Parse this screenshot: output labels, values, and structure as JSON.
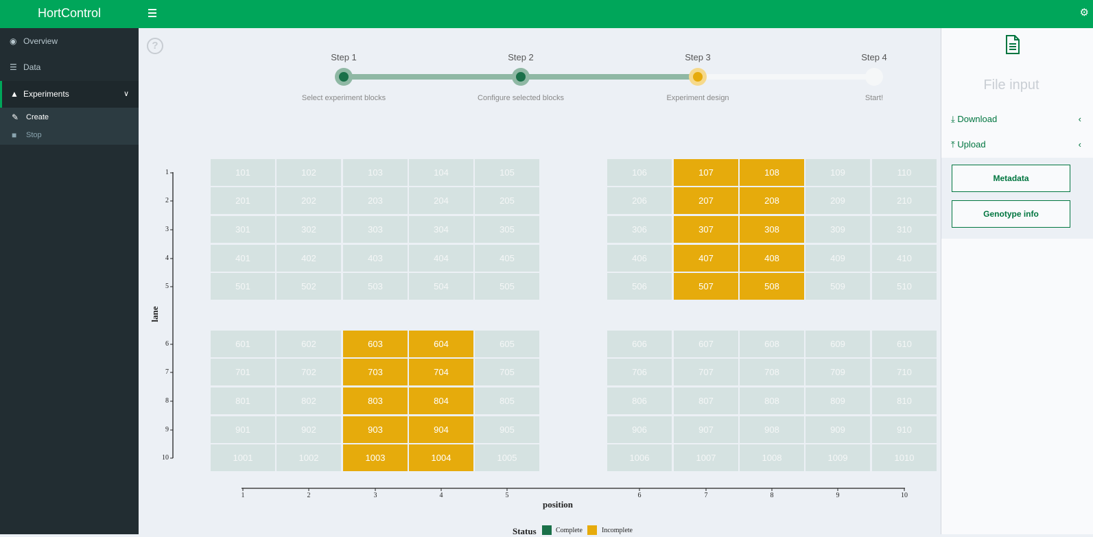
{
  "app": {
    "title": "HortControl"
  },
  "header": {
    "menu_icon": "bars-icon",
    "settings_icon": "gears-icon"
  },
  "sidebar": {
    "items": [
      {
        "label": "Overview",
        "icon": "dashboard-icon"
      },
      {
        "label": "Data",
        "icon": "database-icon"
      },
      {
        "label": "Experiments",
        "icon": "flask-icon",
        "expanded": true
      }
    ],
    "subitems": [
      {
        "label": "Create",
        "icon": "pencil-icon",
        "active": true
      },
      {
        "label": "Stop",
        "icon": "stop-icon",
        "active": false
      }
    ]
  },
  "stepper": {
    "current_step": 3,
    "steps": [
      {
        "label": "Step 1",
        "description": "Select experiment blocks",
        "state": "complete"
      },
      {
        "label": "Step 2",
        "description": "Configure selected blocks",
        "state": "complete"
      },
      {
        "label": "Step 3",
        "description": "Experiment design",
        "state": "active"
      },
      {
        "label": "Step 4",
        "description": "Start!",
        "state": "pending"
      }
    ]
  },
  "chart_data": {
    "type": "heatmap",
    "xlabel": "position",
    "ylabel": "lane",
    "x_ticks": [
      1,
      2,
      3,
      4,
      5,
      6,
      7,
      8,
      9,
      10
    ],
    "y_ticks": [
      1,
      2,
      3,
      4,
      5,
      6,
      7,
      8,
      9,
      10
    ],
    "legend": {
      "title": "Status",
      "entries": [
        {
          "label": "Complete",
          "color": "#1a7049"
        },
        {
          "label": "Incomplete",
          "color": "#e6ab0c"
        }
      ]
    },
    "incomplete_cells": [
      "107",
      "108",
      "207",
      "208",
      "307",
      "308",
      "407",
      "408",
      "507",
      "508",
      "603",
      "604",
      "703",
      "704",
      "803",
      "804",
      "903",
      "904",
      "1003",
      "1004"
    ],
    "colors": {
      "unselected": "#d5e2e1",
      "unselected_text": "#f5f7f7",
      "selected_text": "#ffffff"
    }
  },
  "right_panel": {
    "title": "File input",
    "links": [
      {
        "label": "Download",
        "icon": "download-icon"
      },
      {
        "label": "Upload",
        "icon": "upload-icon"
      }
    ],
    "buttons": [
      {
        "label": "Metadata"
      },
      {
        "label": "Genotype info"
      }
    ]
  },
  "colors": {
    "accent": "#00a65a",
    "sidebar_bg": "#222d32",
    "step_complete": "#1a7049",
    "step_active": "#e6ab0c"
  }
}
